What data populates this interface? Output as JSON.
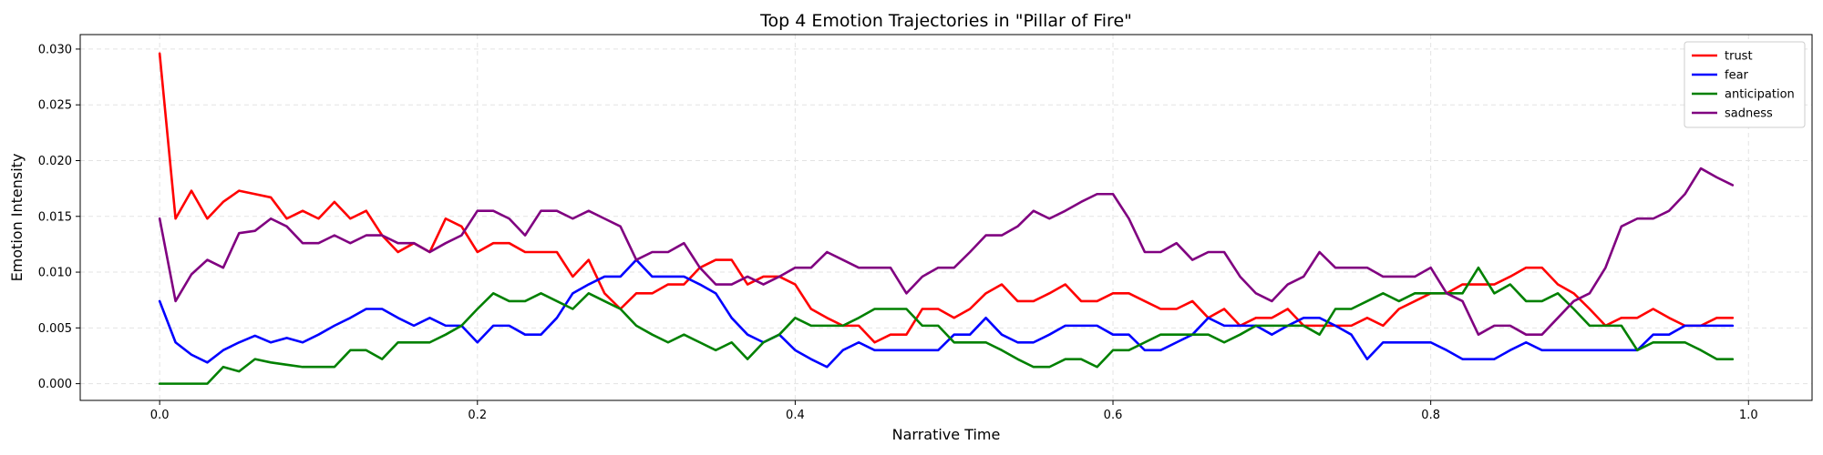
{
  "chart_data": {
    "type": "line",
    "title": "Top 4 Emotion Trajectories in \"Pillar of Fire\"",
    "xlabel": "Narrative Time",
    "ylabel": "Emotion Intensity",
    "xlim": [
      -0.05,
      1.04
    ],
    "ylim": [
      -0.0015,
      0.0313
    ],
    "xticks": [
      0.0,
      0.2,
      0.4,
      0.6,
      0.8,
      1.0
    ],
    "xtick_labels": [
      "0.0",
      "0.2",
      "0.4",
      "0.6",
      "0.8",
      "1.0"
    ],
    "yticks": [
      0.0,
      0.005,
      0.01,
      0.015,
      0.02,
      0.025,
      0.03
    ],
    "ytick_labels": [
      "0.000",
      "0.005",
      "0.010",
      "0.015",
      "0.020",
      "0.025",
      "0.030"
    ],
    "grid": true,
    "legend_position": "top-right",
    "x": [
      0.0,
      0.01,
      0.02,
      0.03,
      0.04,
      0.05,
      0.06,
      0.07,
      0.08,
      0.09,
      0.1,
      0.11,
      0.12,
      0.13,
      0.14,
      0.15,
      0.16,
      0.17,
      0.18,
      0.19,
      0.2,
      0.21,
      0.22,
      0.23,
      0.24,
      0.25,
      0.26,
      0.27,
      0.28,
      0.29,
      0.3,
      0.31,
      0.32,
      0.33,
      0.34,
      0.35,
      0.36,
      0.37,
      0.38,
      0.39,
      0.4,
      0.41,
      0.42,
      0.43,
      0.44,
      0.45,
      0.46,
      0.47,
      0.48,
      0.49,
      0.5,
      0.51,
      0.52,
      0.53,
      0.54,
      0.55,
      0.56,
      0.57,
      0.58,
      0.59,
      0.6,
      0.61,
      0.62,
      0.63,
      0.64,
      0.65,
      0.66,
      0.67,
      0.68,
      0.69,
      0.7,
      0.71,
      0.72,
      0.73,
      0.74,
      0.75,
      0.76,
      0.77,
      0.78,
      0.79,
      0.8,
      0.81,
      0.82,
      0.83,
      0.84,
      0.85,
      0.86,
      0.87,
      0.88,
      0.89,
      0.9,
      0.91,
      0.92,
      0.93,
      0.94,
      0.95,
      0.96,
      0.97,
      0.98,
      0.99
    ],
    "series": [
      {
        "name": "trust",
        "color": "#ff0000",
        "values": [
          0.0296,
          0.0148,
          0.0173,
          0.0148,
          0.0163,
          0.0173,
          0.017,
          0.0167,
          0.0148,
          0.0155,
          0.0148,
          0.0163,
          0.0148,
          0.0155,
          0.0133,
          0.0118,
          0.0126,
          0.0118,
          0.0148,
          0.0141,
          0.0118,
          0.0126,
          0.0126,
          0.0118,
          0.0118,
          0.0118,
          0.0096,
          0.0111,
          0.0081,
          0.0067,
          0.0081,
          0.0081,
          0.0089,
          0.0089,
          0.0104,
          0.0111,
          0.0111,
          0.0089,
          0.0096,
          0.0096,
          0.0089,
          0.0067,
          0.0059,
          0.0052,
          0.0052,
          0.0037,
          0.0044,
          0.0044,
          0.0067,
          0.0067,
          0.0059,
          0.0067,
          0.0081,
          0.0089,
          0.0074,
          0.0074,
          0.0081,
          0.0089,
          0.0074,
          0.0074,
          0.0081,
          0.0081,
          0.0074,
          0.0067,
          0.0067,
          0.0074,
          0.0059,
          0.0067,
          0.0052,
          0.0059,
          0.0059,
          0.0067,
          0.0052,
          0.0052,
          0.0052,
          0.0052,
          0.0059,
          0.0052,
          0.0067,
          0.0074,
          0.0081,
          0.0081,
          0.0089,
          0.0089,
          0.0089,
          0.0096,
          0.0104,
          0.0104,
          0.0089,
          0.0081,
          0.0067,
          0.0052,
          0.0059,
          0.0059,
          0.0067,
          0.0059,
          0.0052,
          0.0052,
          0.0059,
          0.0059
        ]
      },
      {
        "name": "fear",
        "color": "#0000ff",
        "values": [
          0.0074,
          0.0037,
          0.0026,
          0.0019,
          0.003,
          0.0037,
          0.0043,
          0.0037,
          0.0041,
          0.0037,
          0.0044,
          0.0052,
          0.0059,
          0.0067,
          0.0067,
          0.0059,
          0.0052,
          0.0059,
          0.0052,
          0.0052,
          0.0037,
          0.0052,
          0.0052,
          0.0044,
          0.0044,
          0.0059,
          0.0081,
          0.0089,
          0.0096,
          0.0096,
          0.0111,
          0.0096,
          0.0096,
          0.0096,
          0.0089,
          0.0081,
          0.0059,
          0.0044,
          0.0037,
          0.0044,
          0.003,
          0.0022,
          0.0015,
          0.003,
          0.0037,
          0.003,
          0.003,
          0.003,
          0.003,
          0.003,
          0.0044,
          0.0044,
          0.0059,
          0.0044,
          0.0037,
          0.0037,
          0.0044,
          0.0052,
          0.0052,
          0.0052,
          0.0044,
          0.0044,
          0.003,
          0.003,
          0.0037,
          0.0044,
          0.0059,
          0.0052,
          0.0052,
          0.0052,
          0.0044,
          0.0052,
          0.0059,
          0.0059,
          0.0052,
          0.0044,
          0.0022,
          0.0037,
          0.0037,
          0.0037,
          0.0037,
          0.003,
          0.0022,
          0.0022,
          0.0022,
          0.003,
          0.0037,
          0.003,
          0.003,
          0.003,
          0.003,
          0.003,
          0.003,
          0.003,
          0.0044,
          0.0044,
          0.0052,
          0.0052,
          0.0052,
          0.0052
        ]
      },
      {
        "name": "anticipation",
        "color": "#008000",
        "values": [
          0.0,
          0.0,
          0.0,
          0.0,
          0.0015,
          0.0011,
          0.0022,
          0.0019,
          0.0017,
          0.0015,
          0.0015,
          0.0015,
          0.003,
          0.003,
          0.0022,
          0.0037,
          0.0037,
          0.0037,
          0.0044,
          0.0052,
          0.0067,
          0.0081,
          0.0074,
          0.0074,
          0.0081,
          0.0074,
          0.0067,
          0.0081,
          0.0074,
          0.0067,
          0.0052,
          0.0044,
          0.0037,
          0.0044,
          0.0037,
          0.003,
          0.0037,
          0.0022,
          0.0037,
          0.0044,
          0.0059,
          0.0052,
          0.0052,
          0.0052,
          0.0059,
          0.0067,
          0.0067,
          0.0067,
          0.0052,
          0.0052,
          0.0037,
          0.0037,
          0.0037,
          0.003,
          0.0022,
          0.0015,
          0.0015,
          0.0022,
          0.0022,
          0.0015,
          0.003,
          0.003,
          0.0037,
          0.0044,
          0.0044,
          0.0044,
          0.0044,
          0.0037,
          0.0044,
          0.0052,
          0.0052,
          0.0052,
          0.0052,
          0.0044,
          0.0067,
          0.0067,
          0.0074,
          0.0081,
          0.0074,
          0.0081,
          0.0081,
          0.0081,
          0.0081,
          0.0104,
          0.0081,
          0.0089,
          0.0074,
          0.0074,
          0.0081,
          0.0067,
          0.0052,
          0.0052,
          0.0052,
          0.003,
          0.0037,
          0.0037,
          0.0037,
          0.003,
          0.0022,
          0.0022
        ]
      },
      {
        "name": "sadness",
        "color": "#800080",
        "values": [
          0.0148,
          0.0074,
          0.0098,
          0.0111,
          0.0104,
          0.0135,
          0.0137,
          0.0148,
          0.0141,
          0.0126,
          0.0126,
          0.0133,
          0.0126,
          0.0133,
          0.0133,
          0.0126,
          0.0126,
          0.0118,
          0.0126,
          0.0133,
          0.0155,
          0.0155,
          0.0148,
          0.0133,
          0.0155,
          0.0155,
          0.0148,
          0.0155,
          0.0148,
          0.0141,
          0.0111,
          0.0118,
          0.0118,
          0.0126,
          0.0104,
          0.0089,
          0.0089,
          0.0096,
          0.0089,
          0.0096,
          0.0104,
          0.0104,
          0.0118,
          0.0111,
          0.0104,
          0.0104,
          0.0104,
          0.0081,
          0.0096,
          0.0104,
          0.0104,
          0.0118,
          0.0133,
          0.0133,
          0.0141,
          0.0155,
          0.0148,
          0.0155,
          0.0163,
          0.017,
          0.017,
          0.0148,
          0.0118,
          0.0118,
          0.0126,
          0.0111,
          0.0118,
          0.0118,
          0.0096,
          0.0081,
          0.0074,
          0.0089,
          0.0096,
          0.0118,
          0.0104,
          0.0104,
          0.0104,
          0.0096,
          0.0096,
          0.0096,
          0.0104,
          0.0081,
          0.0074,
          0.0044,
          0.0052,
          0.0052,
          0.0044,
          0.0044,
          0.0059,
          0.0074,
          0.0081,
          0.0104,
          0.0141,
          0.0148,
          0.0148,
          0.0155,
          0.017,
          0.0193,
          0.0185,
          0.0178
        ]
      }
    ]
  }
}
